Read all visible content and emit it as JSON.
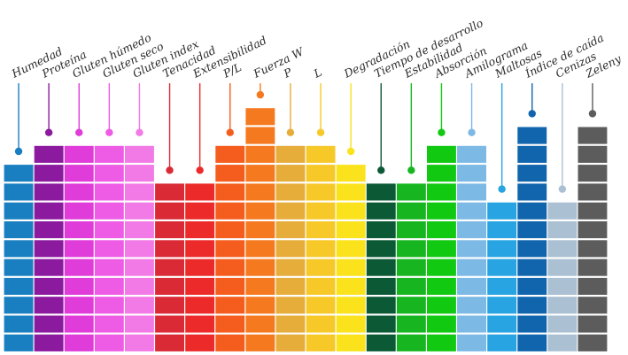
{
  "columns": [
    {
      "label": "Humedad",
      "color": "#1a7fc1",
      "blocks": 10
    },
    {
      "label": "Proteína",
      "color": "#8c1a9e",
      "blocks": 11
    },
    {
      "label": "Gluten húmedo",
      "color": "#e03cd9",
      "blocks": 11
    },
    {
      "label": "Gluten seco",
      "color": "#ee5ce6",
      "blocks": 11
    },
    {
      "label": "Gluten index",
      "color": "#f27ae6",
      "blocks": 11
    },
    {
      "label": "Tenacidad",
      "color": "#d92a35",
      "blocks": 9
    },
    {
      "label": "Extensibilidad",
      "color": "#ec2a2a",
      "blocks": 9
    },
    {
      "label": "P/L",
      "color": "#f45d1e",
      "blocks": 11
    },
    {
      "label": "Fuerza W",
      "color": "#f5791f",
      "blocks": 13
    },
    {
      "label": "P",
      "color": "#e7ad3a",
      "blocks": 11
    },
    {
      "label": "L",
      "color": "#f6c929",
      "blocks": 11
    },
    {
      "label": "Degradación",
      "color": "#fae31d",
      "blocks": 10
    },
    {
      "label": "Tiempo de desarrollo",
      "color": "#0c5a35",
      "blocks": 9
    },
    {
      "label": "Estabilidad",
      "color": "#17b620",
      "blocks": 9
    },
    {
      "label": "Absorción",
      "color": "#12c912",
      "blocks": 11
    },
    {
      "label": "Amilograma",
      "color": "#7db9e5",
      "blocks": 11
    },
    {
      "label": "Maltosas",
      "color": "#27a4e1",
      "blocks": 8
    },
    {
      "label": "Índice de caída",
      "color": "#1165ad",
      "blocks": 12
    },
    {
      "label": "Cenizas",
      "color": "#abc0d3",
      "blocks": 8
    },
    {
      "label": "Zeleny",
      "color": "#5c5c5c",
      "blocks": 12
    }
  ]
}
